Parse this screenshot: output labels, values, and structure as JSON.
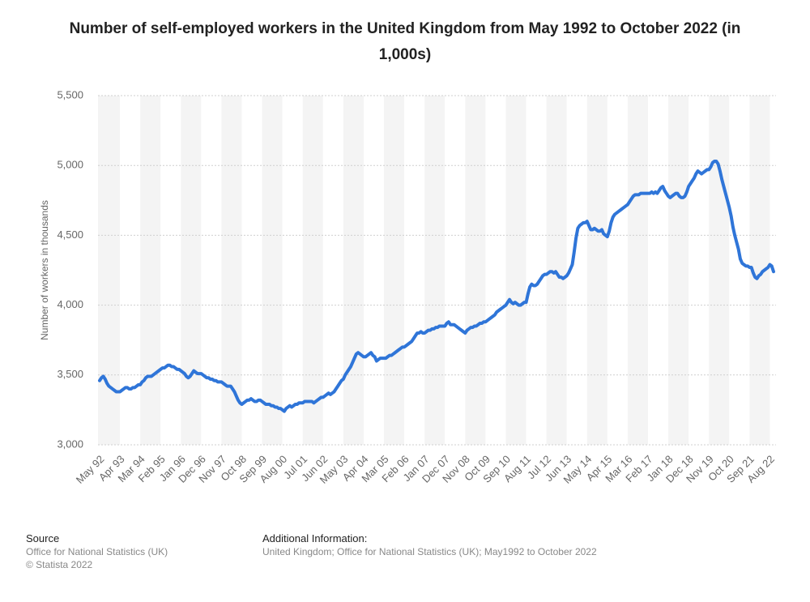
{
  "chart_data": {
    "type": "line",
    "title": "Number of self-employed workers in the United Kingdom from May 1992 to October 2022 (in 1,000s)",
    "y_label": "Number of workers in thousands",
    "color": "#2f75d8",
    "grid": true,
    "ylim": [
      3000,
      5500
    ],
    "yticks": [
      {
        "value": 3000,
        "label": "3,000"
      },
      {
        "value": 3500,
        "label": "3,500"
      },
      {
        "value": 4000,
        "label": "4,000"
      },
      {
        "value": 4500,
        "label": "4,500"
      },
      {
        "value": 5000,
        "label": "5,000"
      },
      {
        "value": 5500,
        "label": "5,500"
      }
    ],
    "categories": [
      "May 92",
      null,
      null,
      null,
      null,
      null,
      null,
      null,
      null,
      null,
      null,
      "Apr 93",
      null,
      null,
      null,
      null,
      null,
      null,
      null,
      null,
      null,
      null,
      "Mar 94",
      null,
      null,
      null,
      null,
      null,
      null,
      null,
      null,
      null,
      null,
      "Feb 95",
      null,
      null,
      null,
      null,
      null,
      null,
      null,
      null,
      null,
      null,
      "Jan 96",
      null,
      null,
      null,
      null,
      null,
      null,
      null,
      null,
      null,
      null,
      "Dec 96",
      null,
      null,
      null,
      null,
      null,
      null,
      null,
      null,
      null,
      null,
      "Nov 97",
      null,
      null,
      null,
      null,
      null,
      null,
      null,
      null,
      null,
      null,
      "Oct 98",
      null,
      null,
      null,
      null,
      null,
      null,
      null,
      null,
      null,
      null,
      "Sep 99",
      null,
      null,
      null,
      null,
      null,
      null,
      null,
      null,
      null,
      null,
      "Aug 00",
      null,
      null,
      null,
      null,
      null,
      null,
      null,
      null,
      null,
      null,
      "Jul 01",
      null,
      null,
      null,
      null,
      null,
      null,
      null,
      null,
      null,
      null,
      "Jun 02",
      null,
      null,
      null,
      null,
      null,
      null,
      null,
      null,
      null,
      null,
      "May 03",
      null,
      null,
      null,
      null,
      null,
      null,
      null,
      null,
      null,
      null,
      "Apr 04",
      null,
      null,
      null,
      null,
      null,
      null,
      null,
      null,
      null,
      null,
      "Mar 05",
      null,
      null,
      null,
      null,
      null,
      null,
      null,
      null,
      null,
      null,
      "Feb 06",
      null,
      null,
      null,
      null,
      null,
      null,
      null,
      null,
      null,
      null,
      "Jan 07",
      null,
      null,
      null,
      null,
      null,
      null,
      null,
      null,
      null,
      null,
      "Dec 07",
      null,
      null,
      null,
      null,
      null,
      null,
      null,
      null,
      null,
      null,
      "Nov 08",
      null,
      null,
      null,
      null,
      null,
      null,
      null,
      null,
      null,
      null,
      "Oct 09",
      null,
      null,
      null,
      null,
      null,
      null,
      null,
      null,
      null,
      null,
      "Sep 10",
      null,
      null,
      null,
      null,
      null,
      null,
      null,
      null,
      null,
      null,
      "Aug 11",
      null,
      null,
      null,
      null,
      null,
      null,
      null,
      null,
      null,
      null,
      "Jul 12",
      null,
      null,
      null,
      null,
      null,
      null,
      null,
      null,
      null,
      null,
      "Jun 13",
      null,
      null,
      null,
      null,
      null,
      null,
      null,
      null,
      null,
      null,
      "May 14",
      null,
      null,
      null,
      null,
      null,
      null,
      null,
      null,
      null,
      null,
      "Apr 15",
      null,
      null,
      null,
      null,
      null,
      null,
      null,
      null,
      null,
      null,
      "Mar 16",
      null,
      null,
      null,
      null,
      null,
      null,
      null,
      null,
      null,
      null,
      "Feb 17",
      null,
      null,
      null,
      null,
      null,
      null,
      null,
      null,
      null,
      null,
      "Jan 18",
      null,
      null,
      null,
      null,
      null,
      null,
      null,
      null,
      null,
      null,
      "Dec 18",
      null,
      null,
      null,
      null,
      null,
      null,
      null,
      null,
      null,
      null,
      "Nov 19",
      null,
      null,
      null,
      null,
      null,
      null,
      null,
      null,
      null,
      null,
      "Oct 20",
      null,
      null,
      null,
      null,
      null,
      null,
      null,
      null,
      null,
      null,
      "Sep 21",
      null,
      null,
      null,
      null,
      null,
      null,
      null,
      null,
      null,
      null,
      "Aug 22",
      null,
      null
    ],
    "values": [
      3460,
      3480,
      3490,
      3470,
      3440,
      3420,
      3410,
      3400,
      3390,
      3380,
      3380,
      3380,
      3390,
      3400,
      3410,
      3410,
      3400,
      3400,
      3410,
      3410,
      3420,
      3430,
      3430,
      3450,
      3460,
      3480,
      3490,
      3490,
      3490,
      3500,
      3510,
      3520,
      3530,
      3540,
      3550,
      3550,
      3560,
      3570,
      3570,
      3560,
      3560,
      3550,
      3540,
      3540,
      3530,
      3520,
      3510,
      3490,
      3480,
      3490,
      3510,
      3530,
      3520,
      3510,
      3510,
      3510,
      3500,
      3490,
      3480,
      3480,
      3470,
      3470,
      3460,
      3460,
      3450,
      3450,
      3450,
      3440,
      3430,
      3420,
      3420,
      3420,
      3400,
      3380,
      3350,
      3320,
      3300,
      3290,
      3300,
      3310,
      3320,
      3320,
      3330,
      3320,
      3310,
      3310,
      3320,
      3320,
      3310,
      3300,
      3290,
      3290,
      3290,
      3280,
      3280,
      3270,
      3270,
      3260,
      3260,
      3250,
      3240,
      3260,
      3270,
      3280,
      3270,
      3280,
      3290,
      3290,
      3300,
      3300,
      3300,
      3310,
      3310,
      3310,
      3310,
      3310,
      3300,
      3310,
      3320,
      3330,
      3340,
      3340,
      3350,
      3360,
      3370,
      3360,
      3370,
      3380,
      3400,
      3420,
      3440,
      3460,
      3470,
      3500,
      3520,
      3540,
      3560,
      3590,
      3620,
      3650,
      3660,
      3650,
      3640,
      3630,
      3630,
      3640,
      3650,
      3660,
      3640,
      3630,
      3600,
      3610,
      3620,
      3620,
      3620,
      3620,
      3630,
      3640,
      3640,
      3650,
      3660,
      3670,
      3680,
      3690,
      3700,
      3700,
      3710,
      3720,
      3730,
      3740,
      3760,
      3780,
      3800,
      3800,
      3810,
      3800,
      3800,
      3810,
      3820,
      3820,
      3830,
      3830,
      3840,
      3840,
      3850,
      3850,
      3850,
      3850,
      3870,
      3880,
      3860,
      3860,
      3860,
      3850,
      3840,
      3830,
      3820,
      3810,
      3800,
      3820,
      3830,
      3840,
      3840,
      3850,
      3850,
      3860,
      3870,
      3870,
      3880,
      3880,
      3890,
      3900,
      3910,
      3920,
      3930,
      3950,
      3960,
      3970,
      3980,
      3990,
      4000,
      4020,
      4040,
      4020,
      4010,
      4020,
      4010,
      4000,
      4000,
      4010,
      4020,
      4020,
      4080,
      4130,
      4150,
      4140,
      4140,
      4150,
      4170,
      4190,
      4210,
      4220,
      4220,
      4230,
      4240,
      4240,
      4230,
      4240,
      4220,
      4200,
      4200,
      4190,
      4200,
      4210,
      4230,
      4260,
      4290,
      4380,
      4480,
      4550,
      4570,
      4580,
      4590,
      4590,
      4600,
      4570,
      4540,
      4540,
      4550,
      4540,
      4530,
      4530,
      4540,
      4510,
      4500,
      4490,
      4530,
      4590,
      4630,
      4650,
      4660,
      4670,
      4680,
      4690,
      4700,
      4710,
      4720,
      4740,
      4760,
      4780,
      4790,
      4790,
      4790,
      4800,
      4800,
      4800,
      4800,
      4800,
      4800,
      4810,
      4800,
      4810,
      4800,
      4820,
      4840,
      4850,
      4820,
      4800,
      4780,
      4770,
      4780,
      4790,
      4800,
      4800,
      4780,
      4770,
      4770,
      4780,
      4810,
      4850,
      4870,
      4890,
      4910,
      4940,
      4960,
      4950,
      4940,
      4950,
      4960,
      4970,
      4970,
      4990,
      5020,
      5030,
      5030,
      5010,
      4960,
      4900,
      4850,
      4800,
      4750,
      4700,
      4640,
      4560,
      4500,
      4450,
      4400,
      4330,
      4300,
      4290,
      4280,
      4280,
      4270,
      4270,
      4230,
      4200,
      4190,
      4210,
      4220,
      4240,
      4250,
      4260,
      4270,
      4290,
      4280,
      4240
    ]
  },
  "footer": {
    "source_heading": "Source",
    "source_lines": [
      "Office for National Statistics (UK)",
      "© Statista 2022"
    ],
    "info_heading": "Additional Information:",
    "info_text": "United Kingdom; Office for National Statistics (UK); May1992 to October 2022"
  }
}
